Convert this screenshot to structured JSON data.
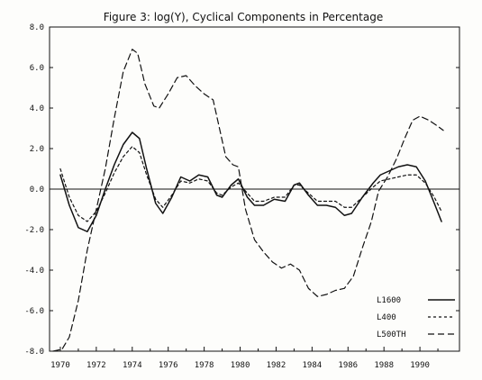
{
  "chart_data": {
    "type": "line",
    "title": "Figure 3:  log(Y), Cyclical Components in Percentage",
    "xlabel": "",
    "ylabel": "",
    "xlim": [
      1969.4,
      1992.2
    ],
    "ylim": [
      -8.0,
      8.0
    ],
    "x_ticks": [
      1970,
      1972,
      1974,
      1976,
      1978,
      1980,
      1982,
      1984,
      1986,
      1988,
      1990
    ],
    "x_tick_labels": [
      "1970",
      "1972",
      "1974",
      "1976",
      "1978",
      "1980",
      "1982",
      "1984",
      "1986",
      "1988",
      "1990"
    ],
    "y_ticks": [
      -8.0,
      -6.0,
      -4.0,
      -2.0,
      0.0,
      2.0,
      4.0,
      6.0,
      8.0
    ],
    "y_tick_labels": [
      "-8.0",
      "-6.0",
      "-4.0",
      "-2.0",
      "0.0",
      "2.0",
      "4.0",
      "6.0",
      "8.0"
    ],
    "grid": false,
    "zero_line": true,
    "legend_position": "bottom-right",
    "series": [
      {
        "name": "L1600",
        "line_style": "solid",
        "color": "#111111",
        "points": [
          [
            1970.0,
            0.7
          ],
          [
            1970.5,
            -0.8
          ],
          [
            1971.0,
            -1.9
          ],
          [
            1971.5,
            -2.1
          ],
          [
            1972.0,
            -1.3
          ],
          [
            1972.5,
            0.0
          ],
          [
            1973.0,
            1.2
          ],
          [
            1973.5,
            2.2
          ],
          [
            1974.0,
            2.8
          ],
          [
            1974.4,
            2.5
          ],
          [
            1974.8,
            1.0
          ],
          [
            1975.3,
            -0.7
          ],
          [
            1975.7,
            -1.2
          ],
          [
            1976.2,
            -0.4
          ],
          [
            1976.7,
            0.6
          ],
          [
            1977.2,
            0.4
          ],
          [
            1977.7,
            0.7
          ],
          [
            1978.2,
            0.6
          ],
          [
            1978.7,
            -0.3
          ],
          [
            1979.0,
            -0.4
          ],
          [
            1979.5,
            0.2
          ],
          [
            1979.9,
            0.5
          ],
          [
            1980.4,
            -0.4
          ],
          [
            1980.8,
            -0.8
          ],
          [
            1981.3,
            -0.8
          ],
          [
            1981.9,
            -0.5
          ],
          [
            1982.5,
            -0.6
          ],
          [
            1983.0,
            0.2
          ],
          [
            1983.3,
            0.3
          ],
          [
            1983.8,
            -0.3
          ],
          [
            1984.3,
            -0.8
          ],
          [
            1984.8,
            -0.8
          ],
          [
            1985.3,
            -0.9
          ],
          [
            1985.8,
            -1.3
          ],
          [
            1986.2,
            -1.2
          ],
          [
            1986.8,
            -0.4
          ],
          [
            1987.4,
            0.3
          ],
          [
            1987.8,
            0.7
          ],
          [
            1988.3,
            0.9
          ],
          [
            1988.8,
            1.1
          ],
          [
            1989.3,
            1.2
          ],
          [
            1989.8,
            1.1
          ],
          [
            1990.3,
            0.4
          ],
          [
            1990.8,
            -0.7
          ],
          [
            1991.2,
            -1.6
          ]
        ]
      },
      {
        "name": "L400",
        "line_style": "short-dash",
        "color": "#111111",
        "points": [
          [
            1970.0,
            1.0
          ],
          [
            1970.5,
            -0.4
          ],
          [
            1971.0,
            -1.3
          ],
          [
            1971.5,
            -1.6
          ],
          [
            1972.0,
            -1.1
          ],
          [
            1972.5,
            -0.2
          ],
          [
            1973.0,
            0.8
          ],
          [
            1973.5,
            1.6
          ],
          [
            1974.0,
            2.1
          ],
          [
            1974.4,
            1.8
          ],
          [
            1974.8,
            0.7
          ],
          [
            1975.3,
            -0.5
          ],
          [
            1975.7,
            -0.9
          ],
          [
            1976.2,
            -0.3
          ],
          [
            1976.7,
            0.4
          ],
          [
            1977.2,
            0.3
          ],
          [
            1977.7,
            0.5
          ],
          [
            1978.2,
            0.4
          ],
          [
            1978.7,
            -0.2
          ],
          [
            1979.0,
            -0.3
          ],
          [
            1979.5,
            0.1
          ],
          [
            1979.9,
            0.3
          ],
          [
            1980.4,
            -0.2
          ],
          [
            1980.8,
            -0.6
          ],
          [
            1981.3,
            -0.6
          ],
          [
            1981.9,
            -0.4
          ],
          [
            1982.5,
            -0.4
          ],
          [
            1983.0,
            0.2
          ],
          [
            1983.3,
            0.2
          ],
          [
            1983.8,
            -0.2
          ],
          [
            1984.3,
            -0.6
          ],
          [
            1984.8,
            -0.6
          ],
          [
            1985.3,
            -0.6
          ],
          [
            1985.8,
            -0.9
          ],
          [
            1986.2,
            -0.9
          ],
          [
            1986.8,
            -0.4
          ],
          [
            1987.4,
            0.1
          ],
          [
            1987.8,
            0.4
          ],
          [
            1988.3,
            0.5
          ],
          [
            1988.8,
            0.6
          ],
          [
            1989.3,
            0.7
          ],
          [
            1989.8,
            0.7
          ],
          [
            1990.3,
            0.3
          ],
          [
            1990.8,
            -0.4
          ],
          [
            1991.2,
            -1.1
          ]
        ]
      },
      {
        "name": "L500TH",
        "line_style": "long-dash",
        "color": "#111111",
        "points": [
          [
            1969.6,
            -8.0
          ],
          [
            1970.1,
            -7.9
          ],
          [
            1970.5,
            -7.3
          ],
          [
            1971.0,
            -5.5
          ],
          [
            1971.5,
            -3.0
          ],
          [
            1972.0,
            -1.0
          ],
          [
            1972.5,
            1.0
          ],
          [
            1973.0,
            3.5
          ],
          [
            1973.5,
            5.8
          ],
          [
            1974.0,
            6.9
          ],
          [
            1974.3,
            6.7
          ],
          [
            1974.7,
            5.2
          ],
          [
            1975.2,
            4.1
          ],
          [
            1975.5,
            4.0
          ],
          [
            1976.0,
            4.7
          ],
          [
            1976.5,
            5.5
          ],
          [
            1977.0,
            5.6
          ],
          [
            1977.5,
            5.1
          ],
          [
            1978.0,
            4.7
          ],
          [
            1978.5,
            4.4
          ],
          [
            1978.8,
            3.2
          ],
          [
            1979.2,
            1.6
          ],
          [
            1979.6,
            1.2
          ],
          [
            1979.9,
            1.1
          ],
          [
            1980.3,
            -1.0
          ],
          [
            1980.8,
            -2.5
          ],
          [
            1981.3,
            -3.1
          ],
          [
            1981.8,
            -3.6
          ],
          [
            1982.3,
            -3.9
          ],
          [
            1982.8,
            -3.7
          ],
          [
            1983.3,
            -4.0
          ],
          [
            1983.8,
            -4.9
          ],
          [
            1984.3,
            -5.3
          ],
          [
            1984.8,
            -5.2
          ],
          [
            1985.3,
            -5.0
          ],
          [
            1985.8,
            -4.9
          ],
          [
            1986.3,
            -4.3
          ],
          [
            1986.8,
            -2.9
          ],
          [
            1987.3,
            -1.6
          ],
          [
            1987.7,
            -0.1
          ],
          [
            1988.2,
            0.6
          ],
          [
            1988.7,
            1.5
          ],
          [
            1989.2,
            2.6
          ],
          [
            1989.6,
            3.4
          ],
          [
            1990.0,
            3.6
          ],
          [
            1990.5,
            3.4
          ],
          [
            1991.0,
            3.1
          ],
          [
            1991.3,
            2.9
          ]
        ]
      }
    ]
  }
}
